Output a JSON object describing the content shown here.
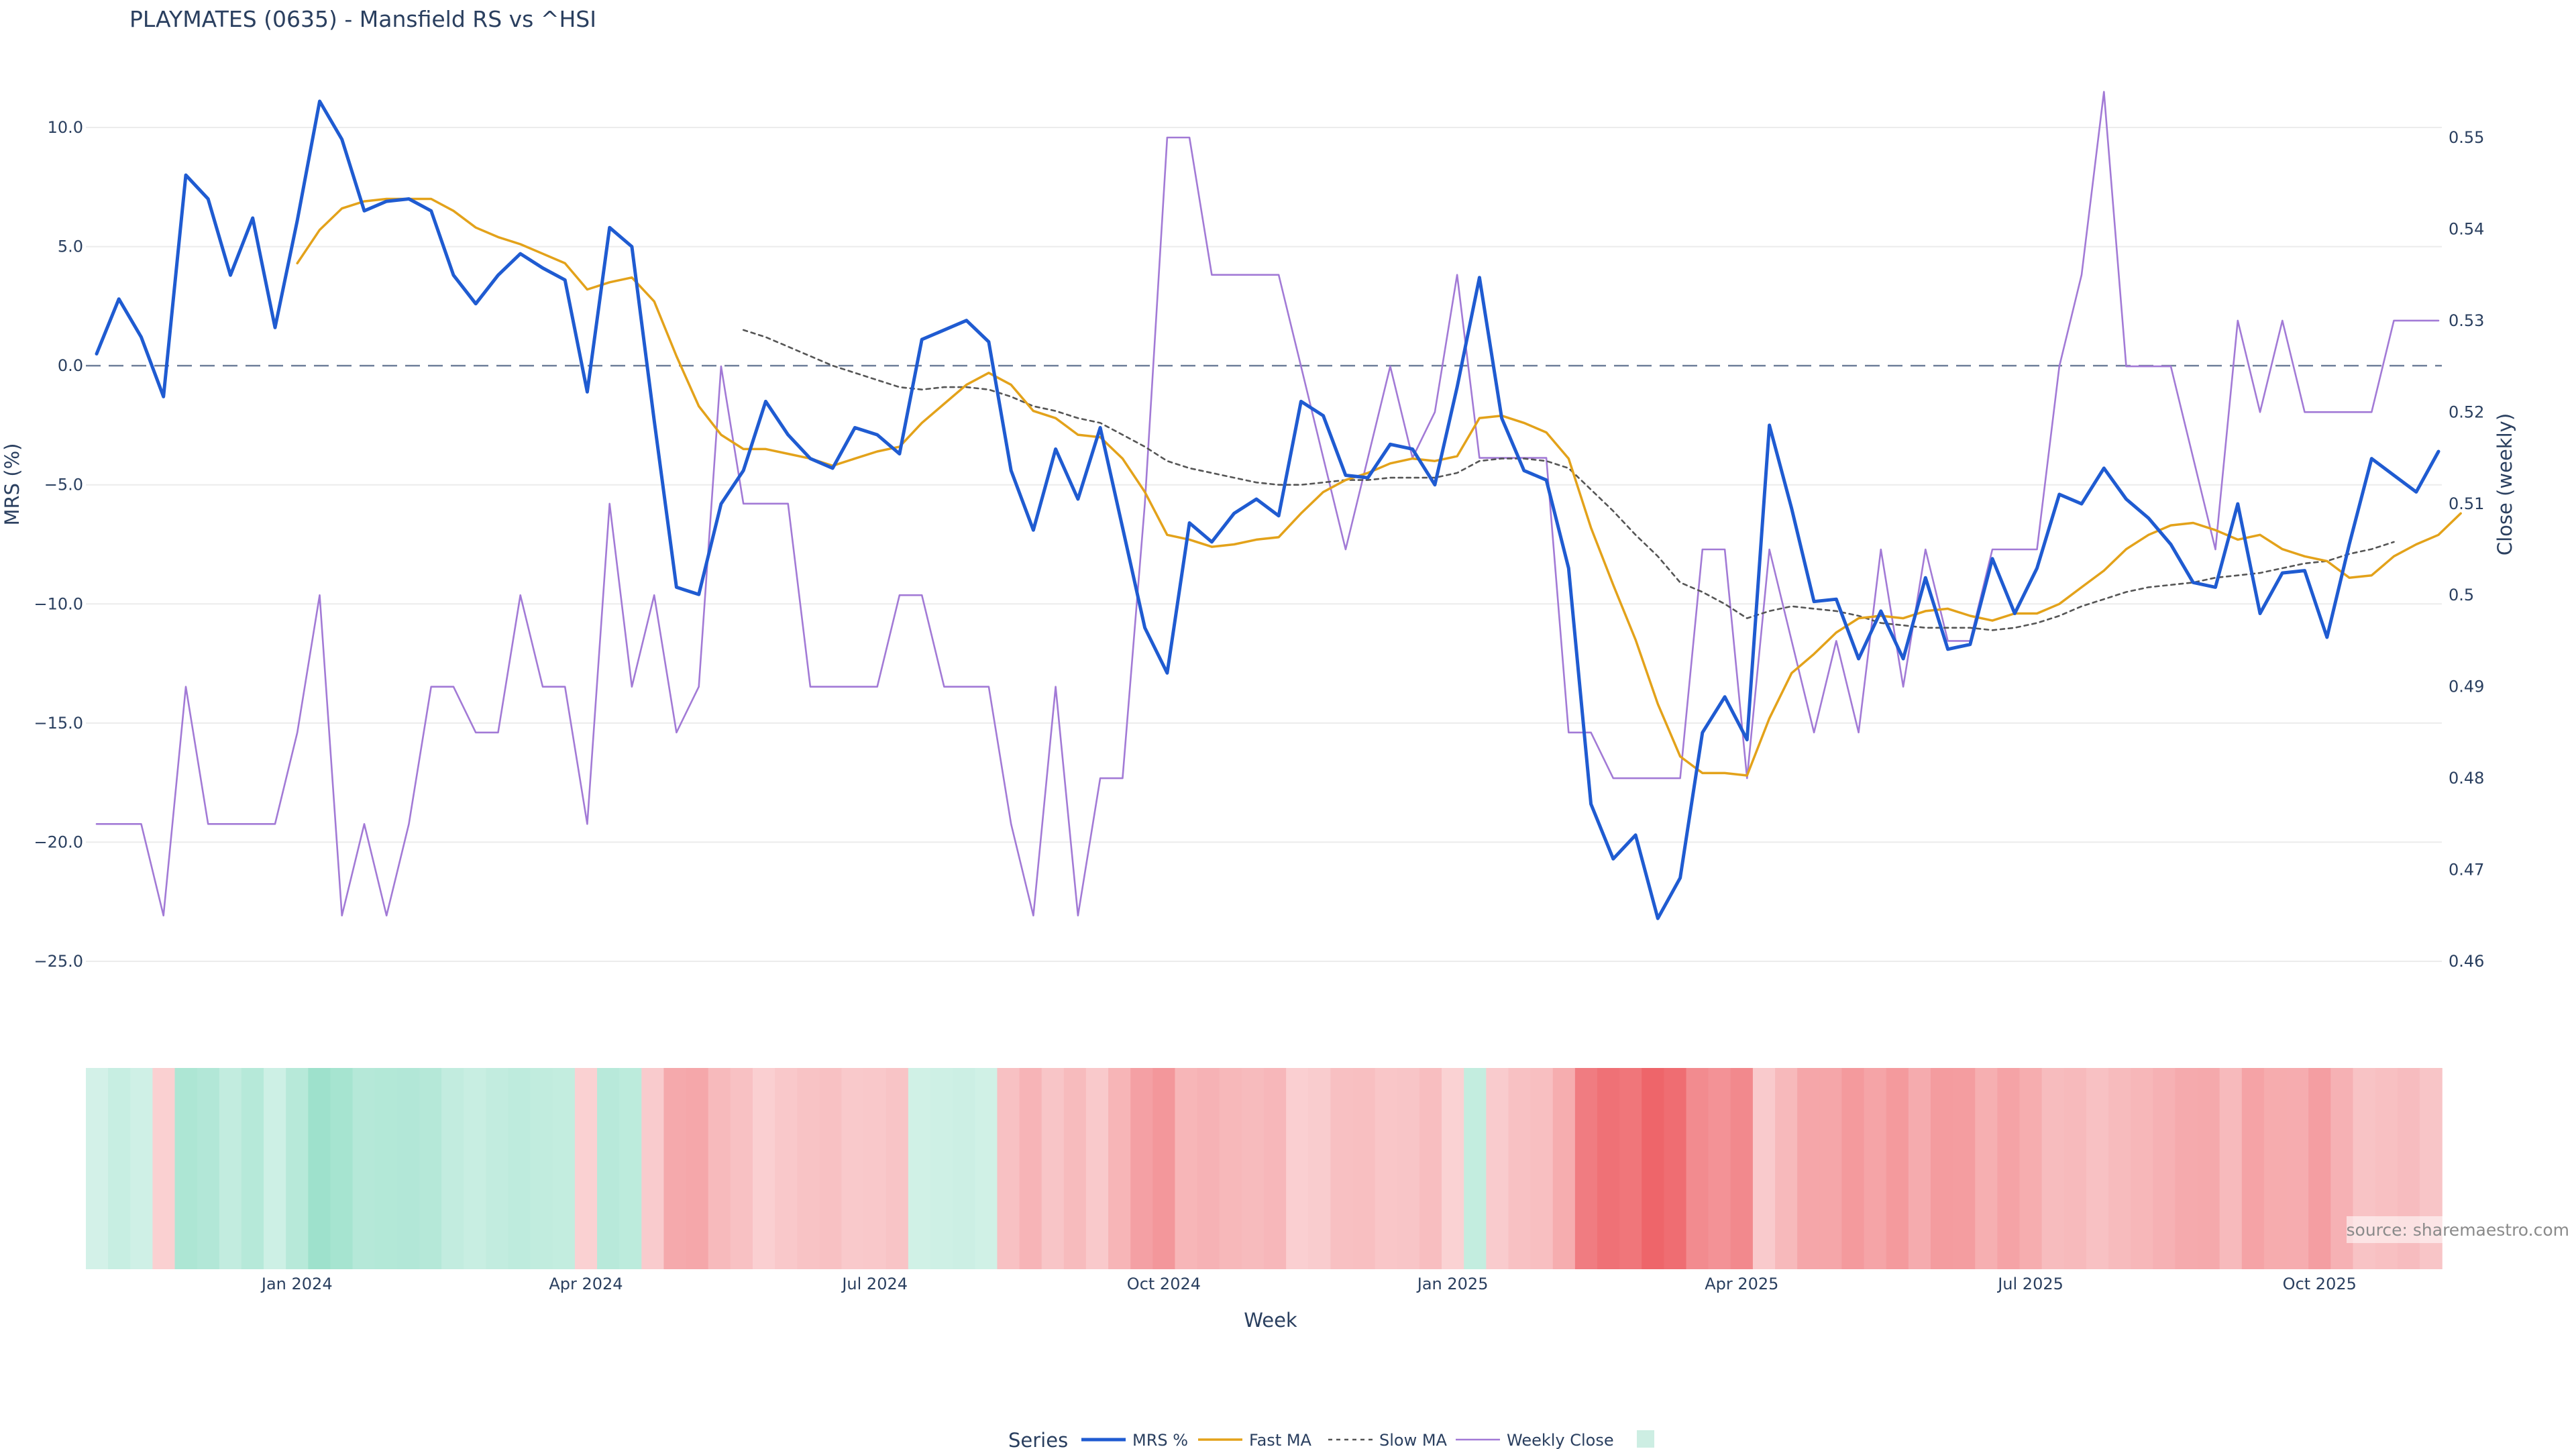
{
  "chart_data": {
    "type": "line",
    "title": "PLAYMATES (0635) - Mansfield RS vs ^HSI",
    "xlabel": "Week",
    "ylabel_left": "MRS (%)",
    "ylabel_right": "Close (weekly)",
    "ylim_left": [
      -25,
      10
    ],
    "ylim_right": [
      0.46,
      0.55
    ],
    "y_ticks_left": [
      "10.0",
      "5.0",
      "0.0",
      "−5.0",
      "−10.0",
      "−15.0",
      "−20.0",
      "−25.0"
    ],
    "y_ticks_left_values": [
      10,
      5,
      0,
      -5,
      -10,
      -15,
      -20,
      -25
    ],
    "y_ticks_right": [
      "0.55",
      "0.54",
      "0.53",
      "0.52",
      "0.51",
      "0.5",
      "0.49",
      "0.48",
      "0.47",
      "0.46"
    ],
    "y_ticks_right_values": [
      0.55,
      0.54,
      0.53,
      0.52,
      0.51,
      0.5,
      0.49,
      0.48,
      0.47,
      0.46
    ],
    "x_ticks": [
      {
        "label": "Jan 2024",
        "week": 9
      },
      {
        "label": "Apr 2024",
        "week": 22
      },
      {
        "label": "Jul 2024",
        "week": 35
      },
      {
        "label": "Oct 2024",
        "week": 48
      },
      {
        "label": "Jan 2025",
        "week": 61
      },
      {
        "label": "Apr 2025",
        "week": 74
      },
      {
        "label": "Jul 2025",
        "week": 87
      },
      {
        "label": "Oct 2025",
        "week": 100
      }
    ],
    "grid": true,
    "zero_line": true,
    "legend_title": "Series",
    "legend_position": "bottom-center",
    "source": "source: sharemaestro.com",
    "series": [
      {
        "name": "MRS %",
        "axis": "left",
        "color": "#1f5bd1",
        "dash": "solid",
        "x_start": 0,
        "values": [
          0.5,
          2.8,
          1.2,
          -1.3,
          8.0,
          7.0,
          3.8,
          6.2,
          1.6,
          6.1,
          11.1,
          9.5,
          6.5,
          6.9,
          7.0,
          6.5,
          3.8,
          2.6,
          3.8,
          4.7,
          4.1,
          3.6,
          -1.1,
          5.8,
          5.0,
          -2.3,
          -9.3,
          -9.6,
          -5.8,
          -4.4,
          -1.5,
          -2.9,
          -3.9,
          -4.3,
          -2.6,
          -2.9,
          -3.7,
          1.1,
          1.5,
          1.9,
          1.0,
          -4.4,
          -6.9,
          -3.5,
          -5.6,
          -2.6,
          -6.8,
          -11.0,
          -12.9,
          -6.6,
          -7.4,
          -6.2,
          -5.6,
          -6.3,
          -1.5,
          -2.1,
          -4.6,
          -4.7,
          -3.3,
          -3.5,
          -5.0,
          -0.9,
          3.7,
          -2.2,
          -4.4,
          -4.8,
          -8.5,
          -18.4,
          -20.7,
          -19.7,
          -23.2,
          -21.5,
          -15.4,
          -13.9,
          -15.7,
          -2.5,
          -6.0,
          -9.9,
          -9.8,
          -12.3,
          -10.3,
          -12.3,
          -8.9,
          -11.9,
          -11.7,
          -8.1,
          -10.4,
          -8.5,
          -5.4,
          -5.8,
          -4.3,
          -5.6,
          -6.4,
          -7.5,
          -9.1,
          -9.3,
          -5.8,
          -10.4,
          -8.7,
          -8.6,
          -11.4,
          -7.5,
          -3.9,
          -4.6,
          -5.3,
          -3.6
        ]
      },
      {
        "name": "Fast MA",
        "axis": "left",
        "color": "#e3a21a",
        "dash": "solid",
        "x_start": 9,
        "values": [
          4.3,
          5.7,
          6.6,
          6.9,
          7.0,
          7.0,
          7.0,
          6.5,
          5.8,
          5.4,
          5.1,
          4.7,
          4.3,
          3.2,
          3.5,
          3.7,
          2.7,
          0.4,
          -1.7,
          -2.9,
          -3.5,
          -3.5,
          -3.7,
          -3.9,
          -4.2,
          -3.9,
          -3.6,
          -3.4,
          -2.4,
          -1.6,
          -0.8,
          -0.3,
          -0.8,
          -1.9,
          -2.2,
          -2.9,
          -3.0,
          -3.9,
          -5.3,
          -7.1,
          -7.3,
          -7.6,
          -7.5,
          -7.3,
          -7.2,
          -6.2,
          -5.3,
          -4.8,
          -4.5,
          -4.1,
          -3.9,
          -4.0,
          -3.8,
          -2.2,
          -2.1,
          -2.4,
          -2.8,
          -3.9,
          -6.8,
          -9.2,
          -11.5,
          -14.2,
          -16.4,
          -17.1,
          -17.1,
          -17.2,
          -14.8,
          -12.9,
          -12.1,
          -11.2,
          -10.6,
          -10.5,
          -10.6,
          -10.3,
          -10.2,
          -10.5,
          -10.7,
          -10.4,
          -10.4,
          -10.0,
          -9.3,
          -8.6,
          -7.7,
          -7.1,
          -6.7,
          -6.6,
          -6.9,
          -7.3,
          -7.1,
          -7.7,
          -8.0,
          -8.2,
          -8.9,
          -8.8,
          -8.0,
          -7.5,
          -7.1,
          -6.2
        ]
      },
      {
        "name": "Slow MA",
        "axis": "left",
        "color": "#555555",
        "dash": "dotted",
        "x_start": 29,
        "values": [
          1.5,
          1.2,
          0.8,
          0.4,
          0.0,
          -0.3,
          -0.6,
          -0.9,
          -1.0,
          -0.9,
          -0.9,
          -1.0,
          -1.3,
          -1.7,
          -1.9,
          -2.2,
          -2.4,
          -2.9,
          -3.4,
          -4.0,
          -4.3,
          -4.5,
          -4.7,
          -4.9,
          -5.0,
          -5.0,
          -4.9,
          -4.8,
          -4.8,
          -4.7,
          -4.7,
          -4.7,
          -4.5,
          -4.0,
          -3.9,
          -3.9,
          -4.0,
          -4.3,
          -5.2,
          -6.1,
          -7.1,
          -8.0,
          -9.1,
          -9.5,
          -10.0,
          -10.6,
          -10.3,
          -10.1,
          -10.2,
          -10.3,
          -10.5,
          -10.8,
          -10.9,
          -11.0,
          -11.0,
          -11.0,
          -11.1,
          -11.0,
          -10.8,
          -10.5,
          -10.1,
          -9.8,
          -9.5,
          -9.3,
          -9.2,
          -9.1,
          -8.9,
          -8.8,
          -8.7,
          -8.5,
          -8.3,
          -8.2,
          -7.9,
          -7.7,
          -7.4
        ]
      },
      {
        "name": "Weekly Close",
        "axis": "right",
        "color": "#a27ad6",
        "dash": "solid",
        "x_start": 0,
        "values": [
          0.475,
          0.475,
          0.475,
          0.465,
          0.49,
          0.475,
          0.475,
          0.475,
          0.475,
          0.485,
          0.5,
          0.465,
          0.475,
          0.465,
          0.475,
          0.49,
          0.49,
          0.485,
          0.485,
          0.5,
          0.49,
          0.49,
          0.475,
          0.51,
          0.49,
          0.5,
          0.485,
          0.49,
          0.525,
          0.51,
          0.51,
          0.51,
          0.49,
          0.49,
          0.49,
          0.49,
          0.5,
          0.5,
          0.49,
          0.49,
          0.49,
          0.475,
          0.465,
          0.49,
          0.465,
          0.48,
          0.48,
          0.51,
          0.55,
          0.55,
          0.535,
          0.535,
          0.535,
          0.535,
          0.525,
          0.515,
          0.505,
          0.515,
          0.525,
          0.515,
          0.52,
          0.535,
          0.515,
          0.515,
          0.515,
          0.515,
          0.485,
          0.485,
          0.48,
          0.48,
          0.48,
          0.48,
          0.505,
          0.505,
          0.48,
          0.505,
          0.495,
          0.485,
          0.495,
          0.485,
          0.505,
          0.49,
          0.505,
          0.495,
          0.495,
          0.505,
          0.505,
          0.505,
          0.525,
          0.535,
          0.555,
          0.525,
          0.525,
          0.525,
          0.515,
          0.505,
          0.53,
          0.52,
          0.53,
          0.52,
          0.52,
          0.52,
          0.52,
          0.53,
          0.53,
          0.53
        ]
      }
    ],
    "heat_strip": {
      "description_scale": "green = positive MRS, red = negative MRS",
      "positive_color": "#2ebf91",
      "negative_color": "#e8333a",
      "limit": 25
    }
  }
}
